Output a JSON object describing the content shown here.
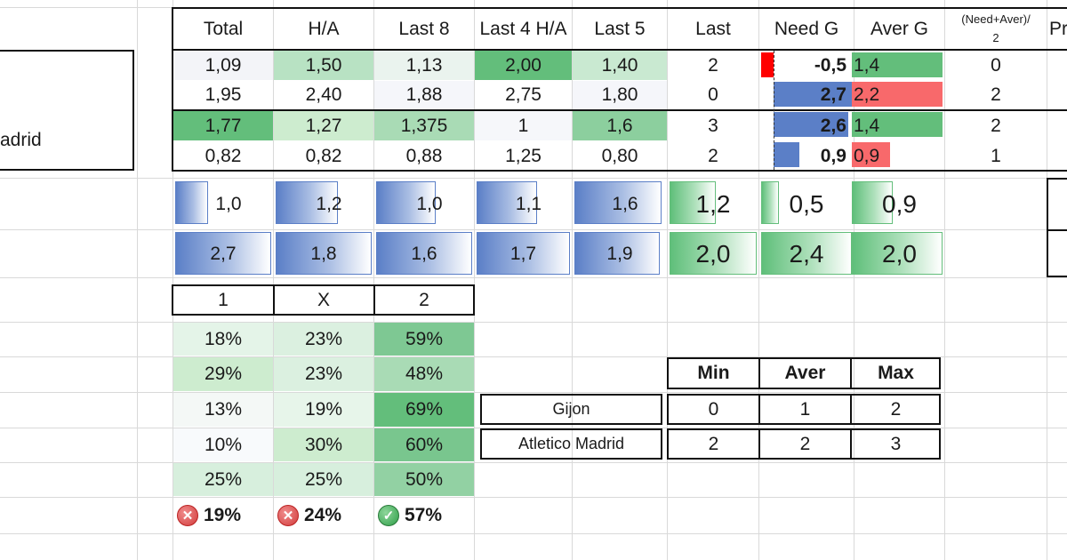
{
  "team_cell": "adrid",
  "header": {
    "cols": [
      "Total",
      "H/A",
      "Last 8",
      "Last 4 H/A",
      "Last 5",
      "Last",
      "Need G",
      "Aver G"
    ],
    "need_aver_line1": "(Need+Aver)/",
    "need_aver_line2": "2",
    "cut_label": "Pr"
  },
  "stats_rows": [
    [
      "1,09",
      "1,50",
      "1,13",
      "2,00",
      "1,40",
      "2",
      "-0,5",
      "1,4",
      "0"
    ],
    [
      "1,95",
      "2,40",
      "1,88",
      "2,75",
      "1,80",
      "0",
      "2,7",
      "2,2",
      "2"
    ],
    [
      "1,77",
      "1,27",
      "1,375",
      "1",
      "1,6",
      "3",
      "2,6",
      "1,4",
      "2"
    ],
    [
      "0,82",
      "0,82",
      "0,88",
      "1,25",
      "0,80",
      "2",
      "0,9",
      "0,9",
      "1"
    ]
  ],
  "databar_rows": [
    [
      "1,0",
      "1,2",
      "1,0",
      "1,1",
      "1,6",
      "1,2",
      "0,5",
      "0,9"
    ],
    [
      "2,7",
      "1,8",
      "1,6",
      "1,7",
      "1,9",
      "2,0",
      "2,4",
      "2,0"
    ]
  ],
  "databar_levels": [
    [
      0.33,
      0.4,
      0.33,
      0.37,
      0.53,
      0.5,
      0.2,
      0.38
    ],
    [
      1.0,
      0.6,
      0.53,
      0.57,
      0.63,
      1.0,
      1.0,
      1.0
    ]
  ],
  "outcome_header": [
    "1",
    "X",
    "2"
  ],
  "outcome_rows": [
    [
      "18%",
      "23%",
      "59%"
    ],
    [
      "29%",
      "23%",
      "48%"
    ],
    [
      "13%",
      "19%",
      "69%"
    ],
    [
      "10%",
      "30%",
      "60%"
    ],
    [
      "25%",
      "25%",
      "50%"
    ]
  ],
  "summary": [
    {
      "icon": "cross-icon",
      "value": "19%"
    },
    {
      "icon": "cross-icon",
      "value": "24%"
    },
    {
      "icon": "check-icon",
      "value": "57%"
    }
  ],
  "goals_table": {
    "headers": [
      "Min",
      "Aver",
      "Max"
    ],
    "teams": [
      {
        "name": "Gijon",
        "values": [
          "0",
          "1",
          "2"
        ]
      },
      {
        "name": "Atletico Madrid",
        "values": [
          "2",
          "2",
          "3"
        ]
      }
    ]
  },
  "colors": {
    "green_strong": "#63be7b",
    "green_mid": "#a5dbb3",
    "green_light": "#d7efdd",
    "red": "#f8696b",
    "blue": "#5b7fc7",
    "red_flag": "#ff0000"
  }
}
